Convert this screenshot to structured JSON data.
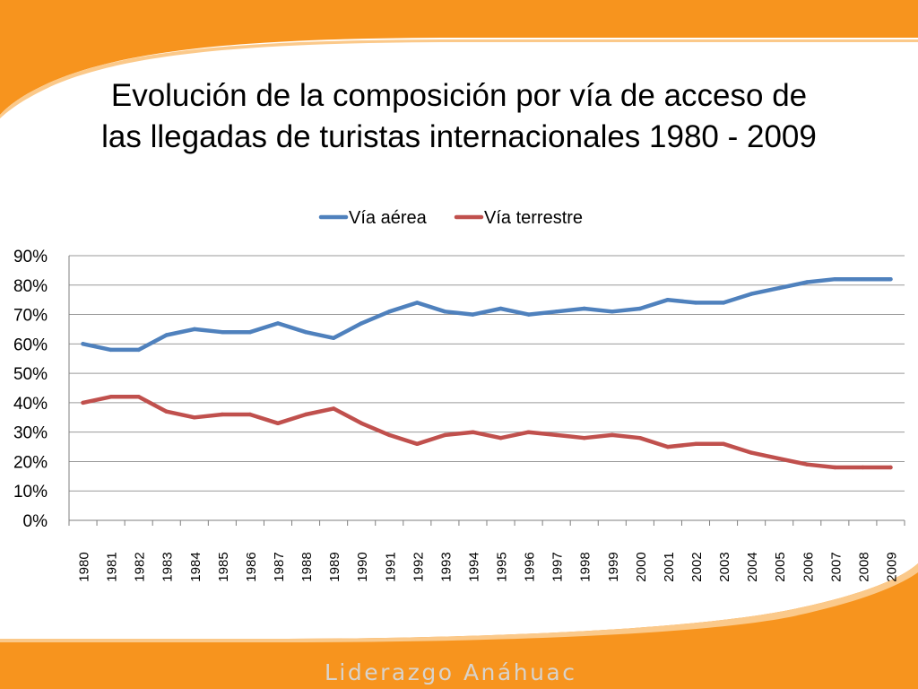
{
  "slide": {
    "title_line1": "Evolución de la composición por vía de acceso de",
    "title_line2": "las llegadas de turistas internacionales 1980 - 2009",
    "footer_brand": "Liderazgo Anáhuac",
    "accent_color": "#f7941e"
  },
  "chart_data": {
    "type": "line",
    "title": "",
    "xlabel": "",
    "ylabel": "",
    "legend_position": "top",
    "grid": true,
    "ylim": [
      0,
      90
    ],
    "y_ticks": [
      "0%",
      "10%",
      "20%",
      "30%",
      "40%",
      "50%",
      "60%",
      "70%",
      "80%",
      "90%"
    ],
    "categories": [
      "1980",
      "1981",
      "1982",
      "1983",
      "1984",
      "1985",
      "1986",
      "1987",
      "1988",
      "1989",
      "1990",
      "1991",
      "1992",
      "1993",
      "1994",
      "1995",
      "1996",
      "1997",
      "1998",
      "1999",
      "2000",
      "2001",
      "2002",
      "2003",
      "2004",
      "2005",
      "2006",
      "2007",
      "2008",
      "2009"
    ],
    "series": [
      {
        "name": "Vía aérea",
        "color": "#4f81bd",
        "values": [
          60,
          58,
          58,
          63,
          65,
          64,
          64,
          67,
          64,
          62,
          67,
          71,
          74,
          71,
          70,
          72,
          70,
          71,
          72,
          71,
          72,
          75,
          74,
          74,
          77,
          79,
          81,
          82,
          82,
          82
        ]
      },
      {
        "name": "Vía terrestre",
        "color": "#c0504d",
        "values": [
          40,
          42,
          42,
          37,
          35,
          36,
          36,
          33,
          36,
          38,
          33,
          29,
          26,
          29,
          30,
          28,
          30,
          29,
          28,
          29,
          28,
          25,
          26,
          26,
          23,
          21,
          19,
          18,
          18,
          18
        ]
      }
    ]
  }
}
